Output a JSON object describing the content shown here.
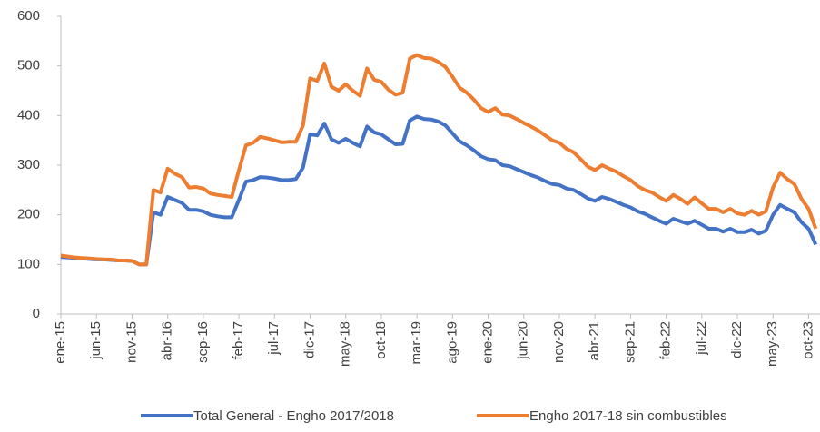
{
  "chart_data": {
    "type": "line",
    "categories": [
      "ene-15",
      null,
      null,
      null,
      null,
      "jun-15",
      null,
      null,
      null,
      null,
      "nov-15",
      null,
      null,
      null,
      null,
      "abr-16",
      null,
      null,
      null,
      null,
      "sep-16",
      null,
      null,
      null,
      null,
      "feb-17",
      null,
      null,
      null,
      null,
      "jul-17",
      null,
      null,
      null,
      null,
      "dic-17",
      null,
      null,
      null,
      null,
      "may-18",
      null,
      null,
      null,
      null,
      "oct-18",
      null,
      null,
      null,
      null,
      "mar-19",
      null,
      null,
      null,
      null,
      "ago-19",
      null,
      null,
      null,
      null,
      "ene-20",
      null,
      null,
      null,
      null,
      "jun-20",
      null,
      null,
      null,
      null,
      "nov-20",
      null,
      null,
      null,
      null,
      "abr-21",
      null,
      null,
      null,
      null,
      "sep-21",
      null,
      null,
      null,
      null,
      "feb-22",
      null,
      null,
      null,
      null,
      "jul-22",
      null,
      null,
      null,
      null,
      "dic-22",
      null,
      null,
      null,
      null,
      "may-23",
      null,
      null,
      null,
      null,
      "oct-23",
      null
    ],
    "series": [
      {
        "name": "Total General - Engho 2017/2018",
        "color": "#4472c4",
        "values": [
          115,
          114,
          113,
          112,
          111,
          110,
          110,
          109,
          108,
          108,
          107,
          100,
          100,
          205,
          200,
          236,
          230,
          224,
          210,
          210,
          207,
          200,
          197,
          195,
          195,
          230,
          267,
          270,
          276,
          275,
          273,
          270,
          270,
          272,
          295,
          362,
          360,
          384,
          352,
          345,
          353,
          345,
          338,
          378,
          366,
          362,
          352,
          342,
          343,
          390,
          398,
          393,
          392,
          388,
          380,
          364,
          348,
          340,
          330,
          318,
          312,
          310,
          300,
          298,
          292,
          286,
          280,
          275,
          268,
          262,
          260,
          253,
          250,
          242,
          233,
          228,
          236,
          232,
          226,
          220,
          215,
          207,
          202,
          195,
          188,
          182,
          192,
          187,
          182,
          188,
          180,
          172,
          172,
          166,
          172,
          165,
          165,
          170,
          162,
          168,
          200,
          220,
          212,
          205,
          185,
          172,
          140
        ]
      },
      {
        "name": "Engho 2017-18 sin combustibles",
        "color": "#ed7d31",
        "values": [
          118,
          116,
          114,
          113,
          112,
          111,
          110,
          110,
          108,
          108,
          107,
          100,
          100,
          250,
          245,
          293,
          283,
          276,
          255,
          256,
          253,
          243,
          240,
          238,
          236,
          290,
          340,
          345,
          357,
          354,
          350,
          346,
          347,
          347,
          380,
          475,
          470,
          505,
          458,
          450,
          463,
          450,
          440,
          495,
          472,
          468,
          452,
          442,
          446,
          515,
          522,
          516,
          515,
          508,
          498,
          478,
          456,
          446,
          432,
          415,
          407,
          415,
          402,
          400,
          393,
          385,
          378,
          370,
          360,
          350,
          345,
          333,
          326,
          312,
          297,
          290,
          300,
          293,
          287,
          278,
          270,
          258,
          250,
          245,
          236,
          228,
          240,
          232,
          222,
          235,
          223,
          212,
          212,
          205,
          212,
          203,
          200,
          208,
          200,
          207,
          255,
          285,
          272,
          262,
          232,
          212,
          172
        ]
      }
    ],
    "ylim": [
      0,
      600
    ],
    "yticks": [
      0,
      100,
      200,
      300,
      400,
      500,
      600
    ]
  }
}
